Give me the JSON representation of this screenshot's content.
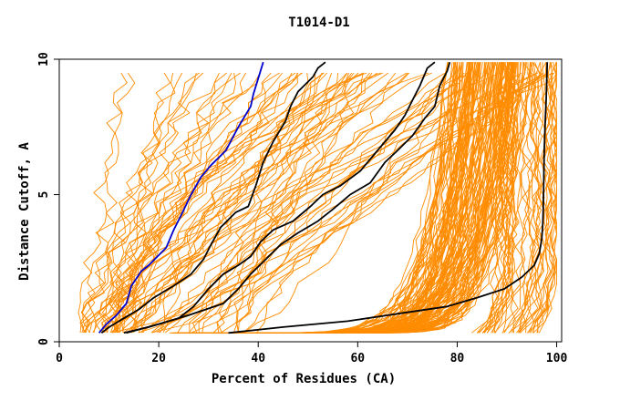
{
  "chart_data": {
    "type": "line",
    "title": "T1014-D1",
    "xlabel": "Percent of Residues (CA)",
    "ylabel": "Distance Cutoff, A",
    "xlim": [
      0,
      101
    ],
    "ylim": [
      0,
      9.6
    ],
    "x_ticks": [
      "0",
      "20",
      "40",
      "60",
      "80",
      "100"
    ],
    "y_ticks": [
      "0",
      "5",
      "10"
    ],
    "colors": {
      "background_series": "#ff8c00",
      "highlight_black": "#000000",
      "highlight_blue": "#0000cc",
      "frame": "#000000"
    },
    "highlighted_series": [
      {
        "name": "blue",
        "color": "#0000cc",
        "points": [
          [
            8,
            0.3
          ],
          [
            9.5,
            0.6
          ],
          [
            11.5,
            0.9
          ],
          [
            13.5,
            1.3
          ],
          [
            14.5,
            1.9
          ],
          [
            16.5,
            2.4
          ],
          [
            18,
            2.6
          ],
          [
            21.5,
            3.2
          ],
          [
            23,
            3.8
          ],
          [
            24.5,
            4.3
          ],
          [
            26.5,
            5.0
          ],
          [
            28.5,
            5.6
          ],
          [
            30.5,
            6.0
          ],
          [
            33.5,
            6.5
          ],
          [
            36,
            7.3
          ],
          [
            38.5,
            8.0
          ],
          [
            39,
            8.4
          ],
          [
            41,
            9.5
          ]
        ]
      },
      {
        "name": "black-1",
        "color": "#000000",
        "points": [
          [
            8.5,
            0.3
          ],
          [
            10,
            0.5
          ],
          [
            13,
            0.8
          ],
          [
            16,
            1.1
          ],
          [
            19,
            1.5
          ],
          [
            23,
            1.9
          ],
          [
            26.5,
            2.3
          ],
          [
            29,
            2.8
          ],
          [
            30.5,
            3.3
          ],
          [
            32.5,
            3.9
          ],
          [
            35.5,
            4.4
          ],
          [
            38,
            4.6
          ],
          [
            39.5,
            5.3
          ],
          [
            41,
            6.1
          ],
          [
            43,
            6.8
          ],
          [
            45.5,
            7.5
          ],
          [
            46.5,
            8.0
          ],
          [
            48,
            8.5
          ],
          [
            51,
            9.0
          ],
          [
            52,
            9.3
          ],
          [
            53.5,
            9.5
          ]
        ]
      },
      {
        "name": "black-2",
        "color": "#000000",
        "points": [
          [
            13,
            0.3
          ],
          [
            18,
            0.5
          ],
          [
            24,
            0.8
          ],
          [
            27,
            1.2
          ],
          [
            30,
            1.8
          ],
          [
            33,
            2.3
          ],
          [
            36,
            2.6
          ],
          [
            38.5,
            2.9
          ],
          [
            40.5,
            3.4
          ],
          [
            43,
            3.8
          ],
          [
            47,
            4.1
          ],
          [
            50.5,
            4.6
          ],
          [
            53,
            5.0
          ],
          [
            56.5,
            5.3
          ],
          [
            60.5,
            5.8
          ],
          [
            64,
            6.5
          ],
          [
            67.5,
            7.2
          ],
          [
            69.5,
            7.7
          ],
          [
            71,
            8.2
          ],
          [
            72.5,
            8.7
          ],
          [
            74,
            9.3
          ],
          [
            75.5,
            9.5
          ]
        ]
      },
      {
        "name": "black-3",
        "color": "#000000",
        "points": [
          [
            13.5,
            0.3
          ],
          [
            20,
            0.6
          ],
          [
            26,
            0.9
          ],
          [
            33,
            1.3
          ],
          [
            36,
            1.8
          ],
          [
            38.5,
            2.3
          ],
          [
            41.5,
            2.8
          ],
          [
            44.5,
            3.3
          ],
          [
            48,
            3.7
          ],
          [
            52,
            4.1
          ],
          [
            55,
            4.5
          ],
          [
            58.5,
            5.0
          ],
          [
            62.5,
            5.4
          ],
          [
            65.5,
            6.1
          ],
          [
            68,
            6.5
          ],
          [
            71,
            7.0
          ],
          [
            73.5,
            7.6
          ],
          [
            75.5,
            8.0
          ],
          [
            76.5,
            8.7
          ],
          [
            78,
            9.2
          ],
          [
            78.5,
            9.5
          ]
        ]
      },
      {
        "name": "black-4",
        "color": "#000000",
        "points": [
          [
            34,
            0.3
          ],
          [
            45,
            0.5
          ],
          [
            58,
            0.7
          ],
          [
            70,
            1.0
          ],
          [
            78,
            1.2
          ],
          [
            84,
            1.5
          ],
          [
            89.5,
            1.8
          ],
          [
            93,
            2.2
          ],
          [
            95.5,
            2.6
          ],
          [
            96.5,
            3.0
          ],
          [
            97,
            3.5
          ],
          [
            97.2,
            4.0
          ],
          [
            97.3,
            4.5
          ],
          [
            97.4,
            5.5
          ],
          [
            97.5,
            6.5
          ],
          [
            97.7,
            7.5
          ],
          [
            97.9,
            8.3
          ],
          [
            98.1,
            9.5
          ]
        ]
      }
    ]
  }
}
